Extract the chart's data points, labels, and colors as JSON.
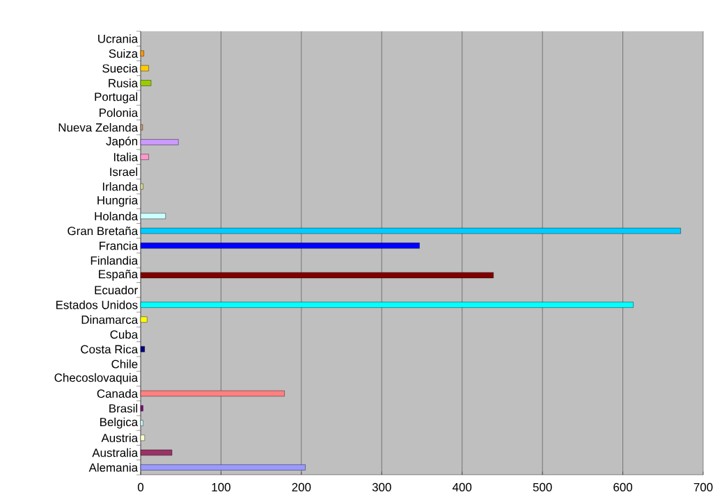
{
  "chart_data": {
    "type": "bar",
    "orientation": "horizontal",
    "categories": [
      "Ucrania",
      "Suiza",
      "Suecia",
      "Rusia",
      "Portugal",
      "Polonia",
      "Nueva Zelanda",
      "Japón",
      "Italia",
      "Israel",
      "Irlanda",
      "Hungria",
      "Holanda",
      "Gran Bretaña",
      "Francia",
      "Finlandia",
      "España",
      "Ecuador",
      "Estados Unidos",
      "Dinamarca",
      "Cuba",
      "Costa Rica",
      "Chile",
      "Checoslovaquia",
      "Canada",
      "Brasil",
      "Belgica",
      "Austria",
      "Australia",
      "Alemania"
    ],
    "values": [
      0,
      4,
      10,
      13,
      0,
      0,
      2.5,
      47,
      10,
      0,
      3,
      0,
      31,
      672,
      347,
      0,
      439,
      0,
      613,
      8,
      0,
      5,
      0,
      0,
      179,
      3,
      3,
      5,
      39,
      205
    ],
    "colors": [
      null,
      "#ff9900",
      "#ffcc00",
      "#99cc00",
      null,
      null,
      "#cc9966",
      "#cc99ff",
      "#ff99cc",
      null,
      "#e0e08a",
      null,
      "#ccffff",
      "#00ccff",
      "#0000ff",
      null,
      "#800000",
      null,
      "#00ffff",
      "#ffff00",
      null,
      "#000080",
      null,
      null,
      "#ff8080",
      "#800080",
      "#ccffff",
      "#ffffcc",
      "#993366",
      "#9999ff"
    ],
    "xlim": [
      0,
      700
    ],
    "xticks": [
      0,
      100,
      200,
      300,
      400,
      500,
      600,
      700
    ],
    "grid": "x"
  }
}
